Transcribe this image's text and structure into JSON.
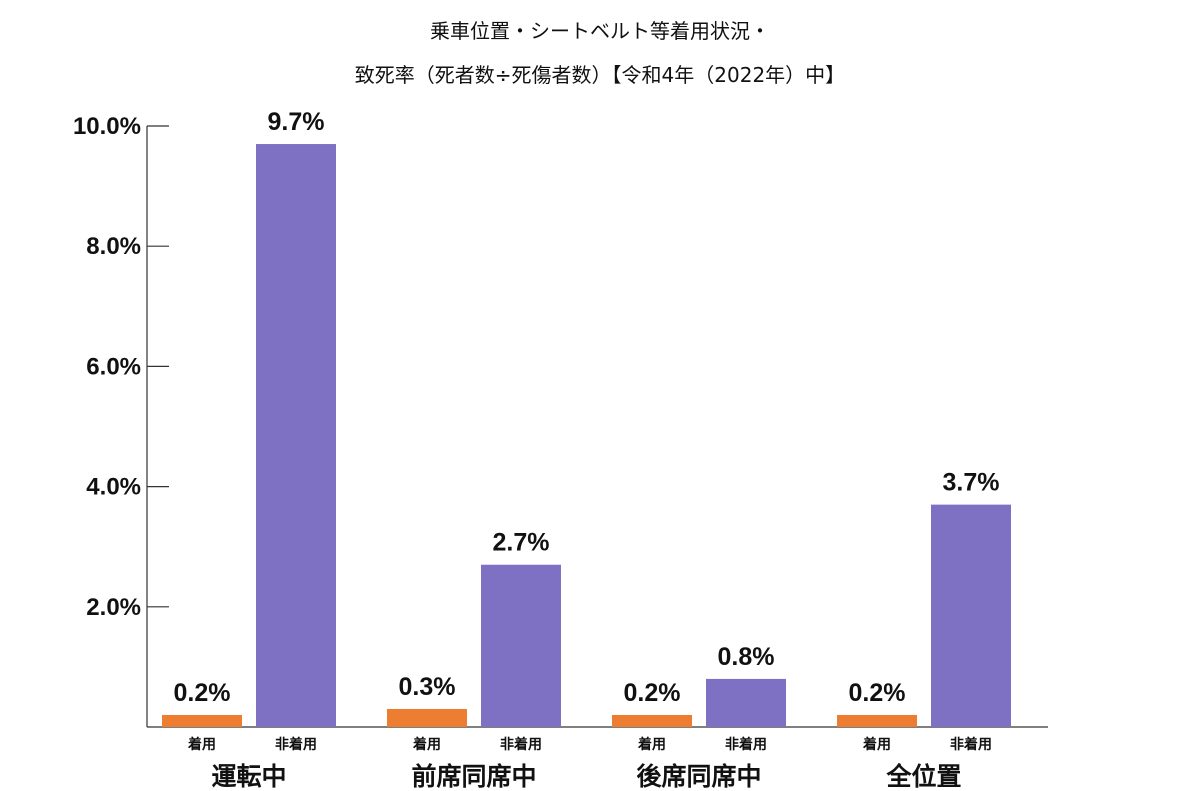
{
  "chart_data": {
    "type": "bar",
    "title_lines": [
      "乗車位置・シートベルト等着用状況・",
      "致死率（死者数÷死傷者数）【令和4年（2022年）中】"
    ],
    "categories": [
      "運転中",
      "前席同席中",
      "後席同席中",
      "全位置"
    ],
    "series": [
      {
        "name": "着用",
        "color": "#ed7d31",
        "values": [
          0.2,
          0.3,
          0.2,
          0.2
        ]
      },
      {
        "name": "非着用",
        "color": "#7e71c4",
        "values": [
          9.7,
          2.7,
          0.8,
          3.7
        ]
      }
    ],
    "value_labels": [
      [
        "0.2%",
        "0.3%",
        "0.2%",
        "0.2%"
      ],
      [
        "9.7%",
        "2.7%",
        "0.8%",
        "3.7%"
      ]
    ],
    "ylim": [
      0,
      10
    ],
    "yticks": [
      2,
      4,
      6,
      8,
      10
    ],
    "ytick_labels": [
      "2.0%",
      "4.0%",
      "6.0%",
      "8.0%",
      "10.0%"
    ],
    "grid": false,
    "legend": "none"
  }
}
